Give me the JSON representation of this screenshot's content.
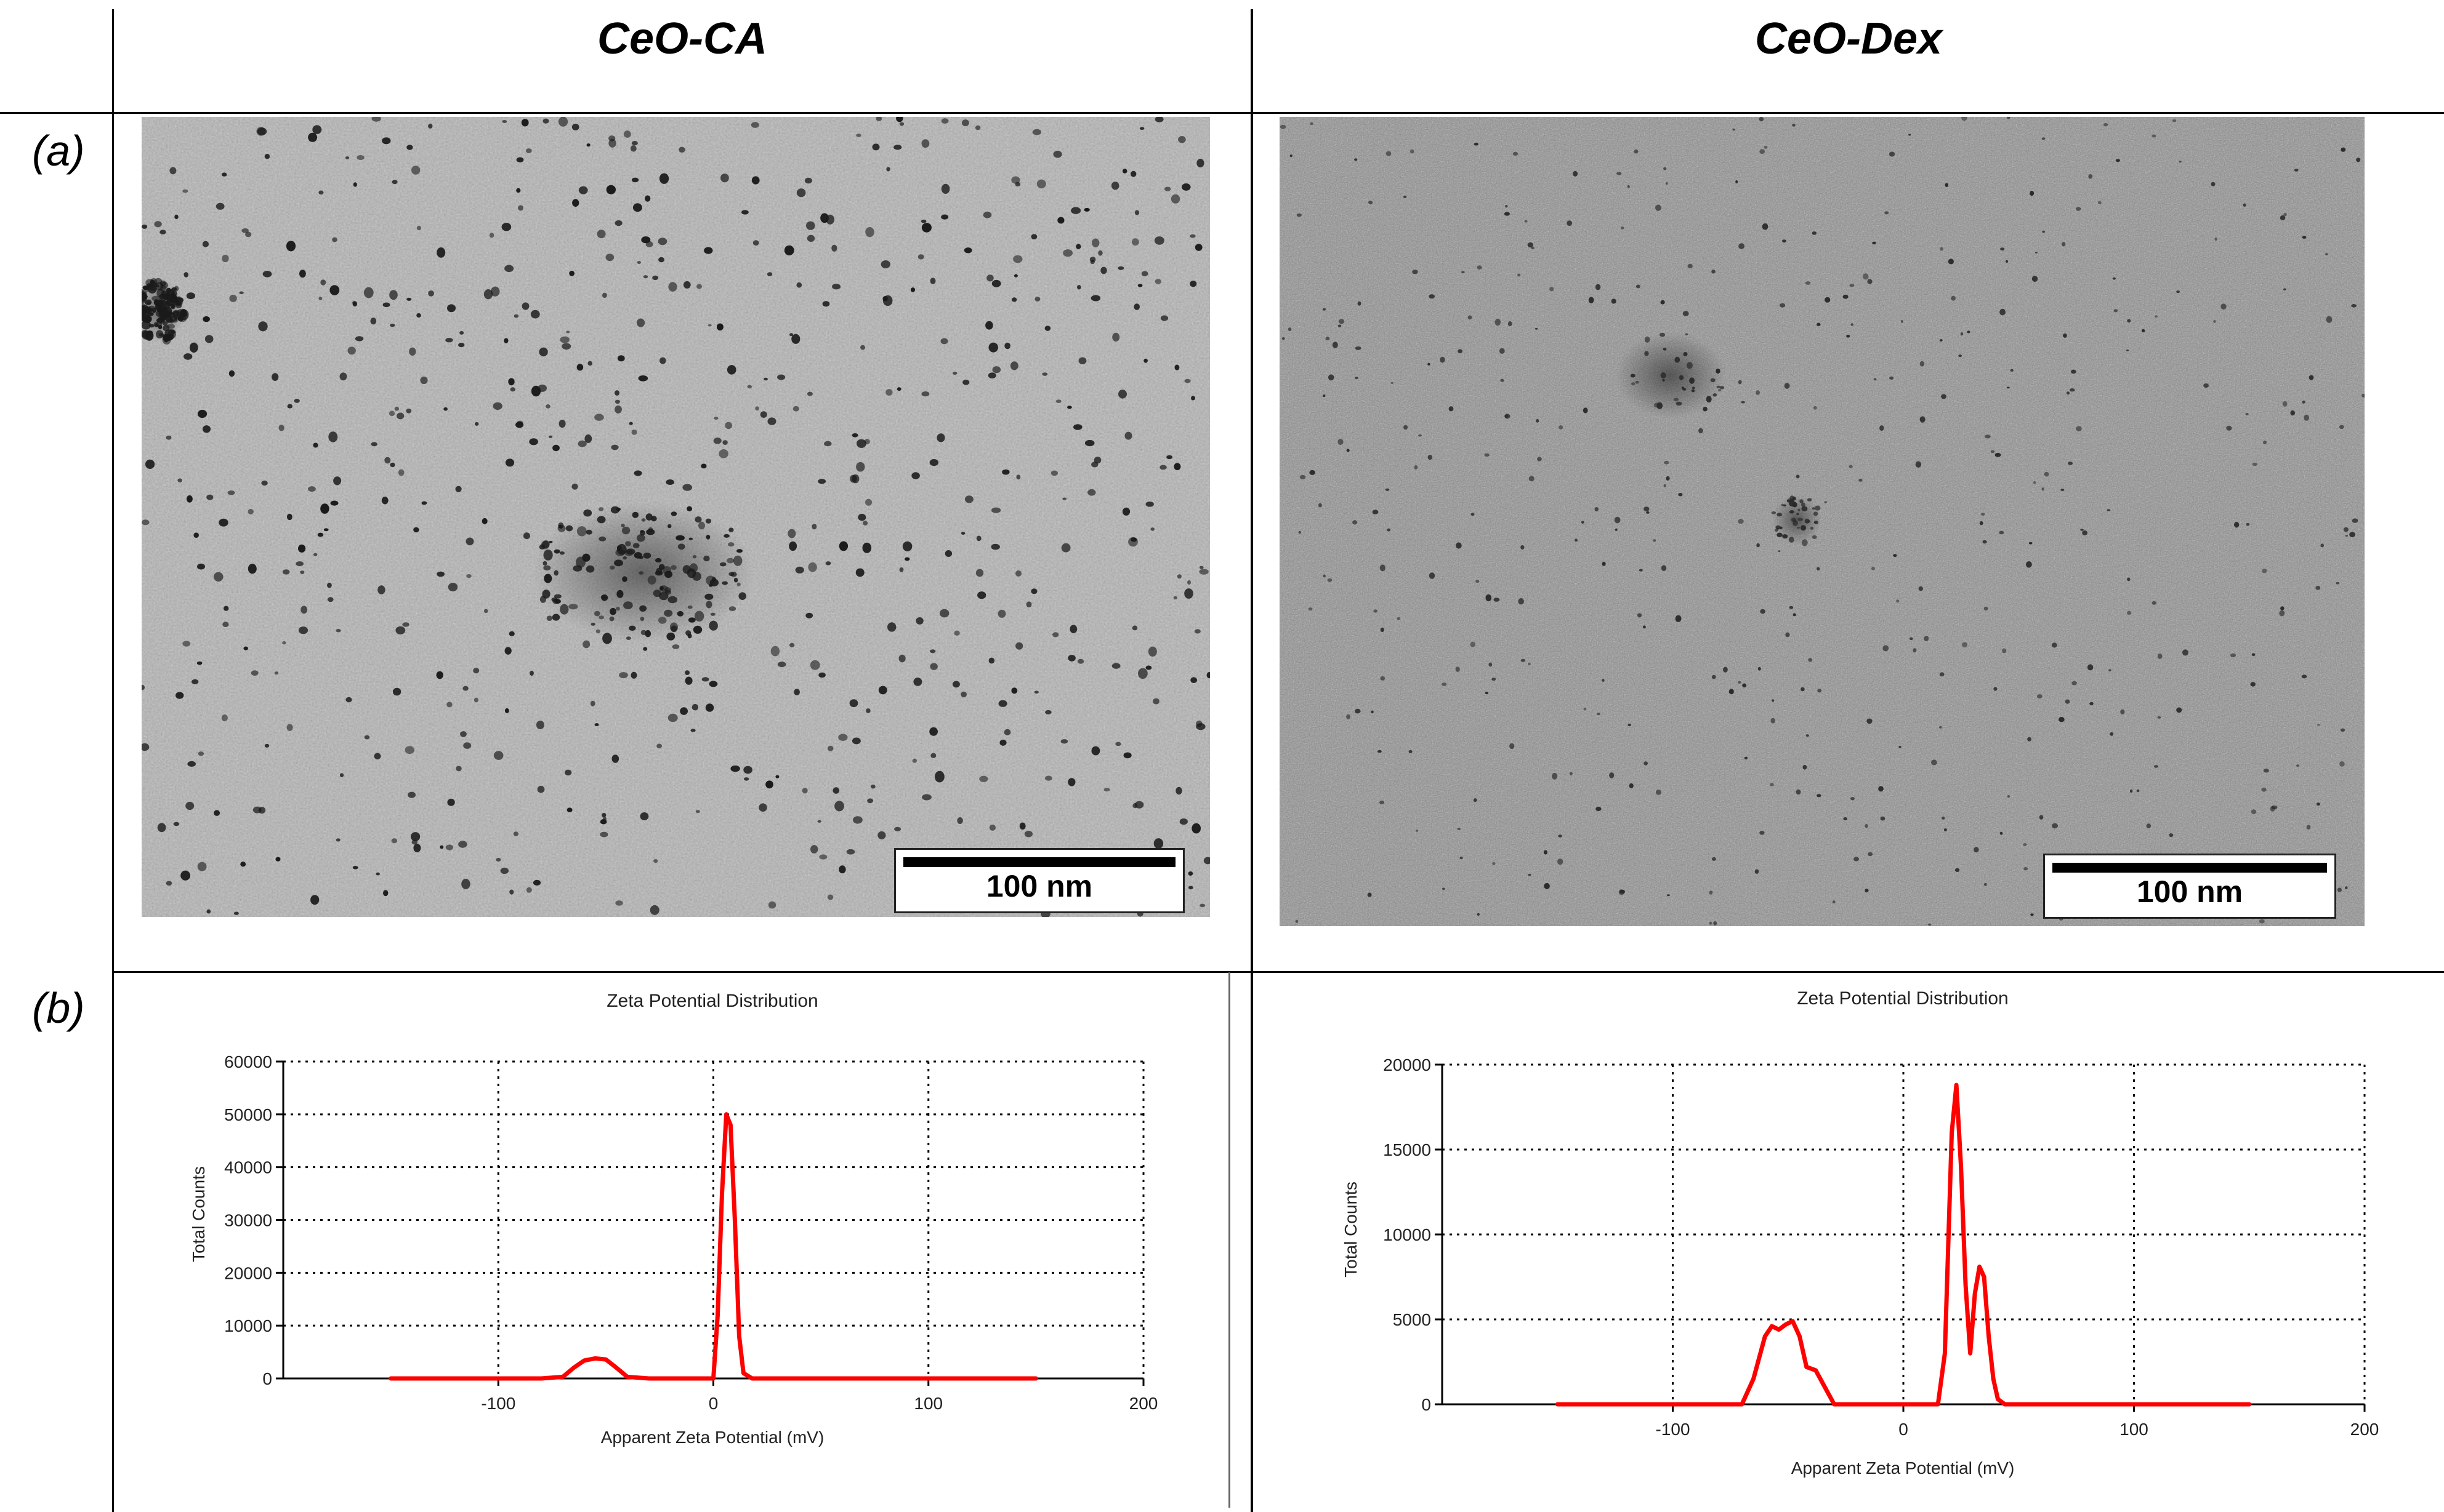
{
  "columns": [
    "CeO-CA",
    "CeO-Dex"
  ],
  "rows": [
    "(a)",
    "(b)"
  ],
  "tem_images": [
    {
      "scale_label": "100 nm"
    },
    {
      "scale_label": "100 nm"
    }
  ],
  "colors": {
    "series": "#ff0000",
    "grid": "#000000"
  },
  "chart_data": [
    {
      "type": "line",
      "title": "Zeta Potential Distribution",
      "xlabel": "Apparent Zeta Potential (mV)",
      "ylabel": "Total Counts",
      "xlim": [
        -200,
        200
      ],
      "ylim": [
        0,
        60000
      ],
      "xticks": [
        -100,
        0,
        100,
        200
      ],
      "yticks": [
        0,
        10000,
        20000,
        30000,
        40000,
        50000,
        60000
      ],
      "grid": true,
      "series": [
        {
          "color": "#ff0000",
          "x": [
            -150,
            -80,
            -70,
            -65,
            -60,
            -55,
            -50,
            -45,
            -40,
            -30,
            0,
            2,
            4,
            6,
            8,
            10,
            12,
            14,
            18,
            30,
            150
          ],
          "y": [
            0,
            0,
            300,
            2000,
            3400,
            3800,
            3600,
            2000,
            300,
            0,
            0,
            12000,
            35000,
            50000,
            48000,
            30000,
            8000,
            1000,
            0,
            0,
            0
          ]
        }
      ]
    },
    {
      "type": "line",
      "title": "Zeta Potential Distribution",
      "xlabel": "Apparent Zeta Potential (mV)",
      "ylabel": "Total Counts",
      "xlim": [
        -200,
        200
      ],
      "ylim": [
        0,
        20000
      ],
      "xticks": [
        -100,
        0,
        100,
        200
      ],
      "yticks": [
        0,
        5000,
        10000,
        15000,
        20000
      ],
      "grid": true,
      "series": [
        {
          "color": "#ff0000",
          "x": [
            -150,
            -70,
            -65,
            -60,
            -57,
            -54,
            -51,
            -48,
            -45,
            -42,
            -38,
            -34,
            -30,
            15,
            18,
            21,
            23,
            25,
            27,
            29,
            31,
            33,
            35,
            37,
            39,
            41,
            44,
            150
          ],
          "y": [
            0,
            0,
            1500,
            4000,
            4600,
            4400,
            4700,
            4900,
            4000,
            2200,
            2000,
            1000,
            0,
            0,
            3000,
            16000,
            18800,
            14000,
            7000,
            3000,
            6500,
            8100,
            7500,
            4000,
            1500,
            300,
            0,
            0
          ]
        }
      ]
    }
  ]
}
